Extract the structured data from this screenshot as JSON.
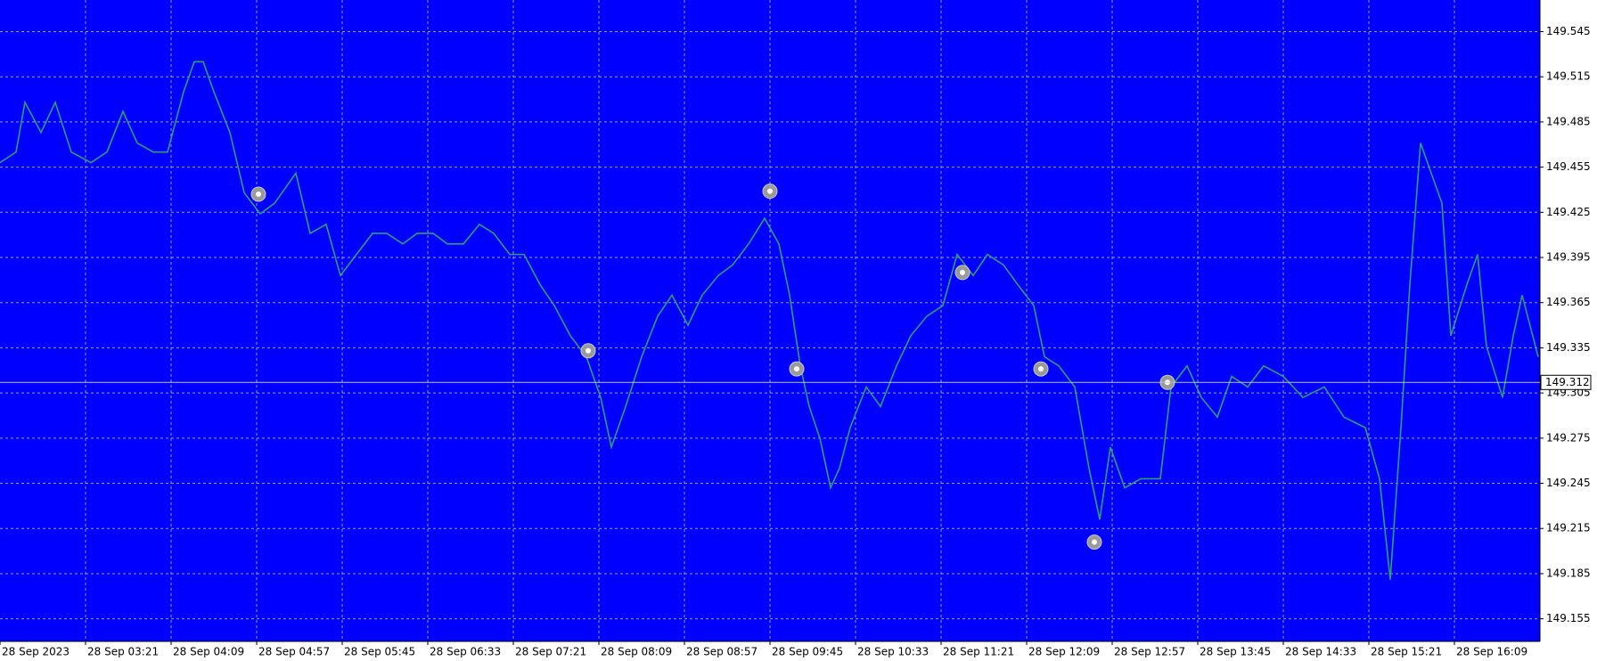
{
  "chart_data": {
    "type": "line",
    "background": "#0000ff",
    "grid": true,
    "x": [
      0,
      9,
      14,
      23,
      31,
      40,
      51,
      60,
      69,
      77,
      86,
      94,
      103,
      109,
      114,
      120,
      129,
      137,
      146,
      154,
      166,
      174,
      183,
      191,
      200,
      209,
      217,
      226,
      234,
      243,
      251,
      260,
      269,
      277,
      286,
      294,
      303,
      311,
      320,
      329,
      337,
      343,
      351,
      360,
      369,
      377,
      386,
      394,
      403,
      411,
      420,
      429,
      437,
      443,
      449,
      454,
      460,
      466,
      471,
      477,
      486,
      494,
      503,
      511,
      520,
      529,
      537,
      546,
      554,
      563,
      571,
      580,
      586,
      594,
      603,
      611,
      617,
      623,
      631,
      640,
      651,
      657,
      666,
      674,
      683,
      691,
      700,
      709,
      720,
      731,
      743,
      754,
      766,
      774,
      780,
      786,
      791,
      797,
      803,
      809,
      814,
      823,
      829,
      834,
      843,
      849,
      854,
      863
    ],
    "series": [
      {
        "color": "#2f9e6f",
        "values": [
          149.458,
          149.465,
          149.498,
          149.478,
          149.498,
          149.465,
          149.458,
          149.465,
          149.492,
          149.471,
          149.465,
          149.465,
          149.505,
          149.525,
          149.525,
          149.505,
          149.478,
          149.438,
          149.424,
          149.431,
          149.451,
          149.411,
          149.417,
          149.383,
          149.397,
          149.411,
          149.411,
          149.404,
          149.411,
          149.411,
          149.404,
          149.404,
          149.417,
          149.411,
          149.397,
          149.397,
          149.377,
          149.363,
          149.343,
          149.329,
          149.302,
          149.269,
          149.296,
          149.329,
          149.356,
          149.37,
          149.35,
          149.37,
          149.383,
          149.39,
          149.404,
          149.421,
          149.404,
          149.37,
          149.323,
          149.296,
          149.275,
          149.242,
          149.255,
          149.282,
          149.309,
          149.296,
          149.323,
          149.343,
          149.356,
          149.363,
          149.397,
          149.383,
          149.397,
          149.39,
          149.377,
          149.363,
          149.329,
          149.323,
          149.309,
          149.255,
          149.221,
          149.269,
          149.242,
          149.248,
          149.248,
          149.309,
          149.323,
          149.302,
          149.289,
          149.316,
          149.309,
          149.323,
          149.316,
          149.302,
          149.309,
          149.289,
          149.282,
          149.248,
          149.181,
          149.282,
          149.377,
          149.471,
          149.451,
          149.431,
          149.343,
          149.377,
          149.397,
          149.336,
          149.302,
          149.343,
          149.37,
          149.329
        ]
      }
    ],
    "markers": {
      "color": "#9a9a9a",
      "x": [
        145,
        330,
        432,
        447,
        540,
        584,
        614,
        655
      ],
      "values": [
        149.437,
        149.333,
        149.439,
        149.321,
        149.385,
        149.321,
        149.206,
        149.312
      ]
    },
    "current_price": 149.312,
    "current_color": "#c0c0c0",
    "xlim": [
      0,
      864
    ],
    "xticks": [
      {
        "value": 0,
        "label": "28 Sep 2023"
      },
      {
        "value": 48,
        "label": "28 Sep 03:21"
      },
      {
        "value": 96,
        "label": "28 Sep 04:09"
      },
      {
        "value": 144,
        "label": "28 Sep 04:57"
      },
      {
        "value": 192,
        "label": "28 Sep 05:45"
      },
      {
        "value": 240,
        "label": "28 Sep 06:33"
      },
      {
        "value": 288,
        "label": "28 Sep 07:21"
      },
      {
        "value": 336,
        "label": "28 Sep 08:09"
      },
      {
        "value": 384,
        "label": "28 Sep 08:57"
      },
      {
        "value": 432,
        "label": "28 Sep 09:45"
      },
      {
        "value": 480,
        "label": "28 Sep 10:33"
      },
      {
        "value": 528,
        "label": "28 Sep 11:21"
      },
      {
        "value": 576,
        "label": "28 Sep 12:09"
      },
      {
        "value": 624,
        "label": "28 Sep 12:57"
      },
      {
        "value": 672,
        "label": "28 Sep 13:45"
      },
      {
        "value": 720,
        "label": "28 Sep 14:33"
      },
      {
        "value": 768,
        "label": "28 Sep 15:21"
      },
      {
        "value": 816,
        "label": "28 Sep 16:09"
      }
    ],
    "ylim": [
      149.14,
      149.566
    ],
    "yticks": [
      149.155,
      149.185,
      149.215,
      149.245,
      149.275,
      149.305,
      149.335,
      149.365,
      149.395,
      149.425,
      149.455,
      149.485,
      149.515,
      149.545
    ]
  }
}
